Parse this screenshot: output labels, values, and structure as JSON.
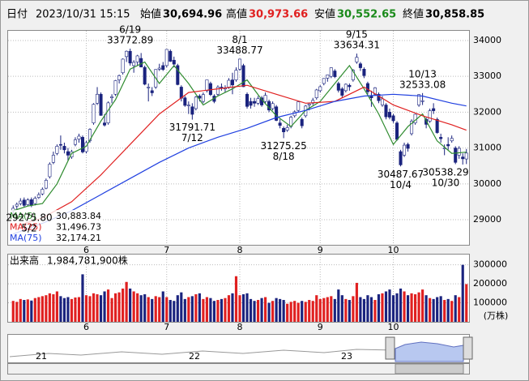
{
  "header": {
    "date_label": "日付",
    "datetime": "2023/10/31 15:15",
    "open_label": "始値",
    "open": "30,694.96",
    "high_label": "高値",
    "high": "30,973.66",
    "low_label": "安値",
    "low": "30,552.65",
    "close_label": "終値",
    "close": "30,858.85"
  },
  "chart_data": {
    "type": "candlestick",
    "categories": [
      null,
      null,
      null,
      null,
      null,
      null,
      null,
      null,
      null,
      null,
      null,
      null,
      null,
      null,
      null,
      null,
      null,
      null,
      null,
      null,
      "6",
      null,
      null,
      null,
      null,
      null,
      null,
      null,
      null,
      null,
      null,
      null,
      null,
      null,
      null,
      null,
      null,
      null,
      null,
      null,
      null,
      null,
      "7",
      null,
      null,
      null,
      null,
      null,
      null,
      null,
      null,
      null,
      null,
      null,
      null,
      null,
      null,
      null,
      null,
      null,
      null,
      null,
      "8",
      null,
      null,
      null,
      null,
      null,
      null,
      null,
      null,
      null,
      null,
      null,
      null,
      null,
      null,
      null,
      null,
      null,
      null,
      null,
      null,
      null,
      "9",
      null,
      null,
      null,
      null,
      null,
      null,
      null,
      null,
      null,
      null,
      null,
      null,
      null,
      null,
      null,
      null,
      null,
      null,
      null,
      "10",
      null,
      null,
      null,
      null,
      null,
      null,
      null,
      null,
      null,
      null,
      null,
      null,
      null,
      null,
      null,
      null,
      null,
      null,
      null,
      null
    ],
    "ohlc": [
      [
        29250,
        29400,
        29150,
        29320
      ],
      [
        29380,
        29480,
        29275.8,
        29430
      ],
      [
        29450,
        29600,
        29400,
        29520
      ],
      [
        29550,
        29620,
        29350,
        29400
      ],
      [
        29420,
        29600,
        29380,
        29550
      ],
      [
        29560,
        29620,
        29350,
        29400
      ],
      [
        29450,
        29650,
        29400,
        29600
      ],
      [
        29620,
        29760,
        29580,
        29700
      ],
      [
        29720,
        29900,
        29680,
        29850
      ],
      [
        29880,
        30150,
        29850,
        30100
      ],
      [
        30200,
        30600,
        30150,
        30550
      ],
      [
        30600,
        30900,
        30550,
        30800
      ],
      [
        30850,
        31100,
        30800,
        31050
      ],
      [
        31100,
        31350,
        30950,
        31080
      ],
      [
        31050,
        31150,
        30850,
        30950
      ],
      [
        30900,
        31000,
        30650,
        30800
      ],
      [
        30750,
        30950,
        30700,
        30900
      ],
      [
        31100,
        31300,
        31050,
        31230
      ],
      [
        31250,
        31400,
        31150,
        31330
      ],
      [
        31300,
        31350,
        30850,
        30890
      ],
      [
        30900,
        31200,
        30850,
        31150
      ],
      [
        31200,
        31550,
        31150,
        31520
      ],
      [
        31700,
        32250,
        31650,
        32220
      ],
      [
        32250,
        32700,
        32200,
        32500
      ],
      [
        32500,
        32550,
        31900,
        31910
      ],
      [
        31700,
        31950,
        31600,
        31640
      ],
      [
        31700,
        32300,
        31650,
        32260
      ],
      [
        32400,
        32500,
        32250,
        32430
      ],
      [
        32500,
        32900,
        32450,
        32880
      ],
      [
        32900,
        33050,
        32800,
        33020
      ],
      [
        33100,
        33500,
        33050,
        33480
      ],
      [
        33550,
        33720,
        33400,
        33700
      ],
      [
        33700,
        33772.89,
        33300,
        33370
      ],
      [
        33300,
        33450,
        33100,
        33390
      ],
      [
        33400,
        33600,
        33300,
        33570
      ],
      [
        33500,
        33650,
        33250,
        33260
      ],
      [
        33250,
        33300,
        32750,
        32780
      ],
      [
        32700,
        32800,
        32300,
        32700
      ],
      [
        32600,
        32700,
        32450,
        32540
      ],
      [
        32700,
        33200,
        32650,
        33190
      ],
      [
        33200,
        33350,
        33150,
        33230
      ],
      [
        33300,
        33400,
        33150,
        33190
      ],
      [
        33300,
        33760,
        33250,
        33750
      ],
      [
        33700,
        33750,
        33400,
        33420
      ],
      [
        33450,
        33550,
        33250,
        33340
      ],
      [
        33300,
        33350,
        32750,
        32770
      ],
      [
        32700,
        32750,
        32300,
        32390
      ],
      [
        32400,
        32450,
        32150,
        32190
      ],
      [
        32200,
        32300,
        31950,
        32200
      ],
      [
        32150,
        32250,
        31791.71,
        31940
      ],
      [
        32100,
        32450,
        32050,
        32420
      ],
      [
        32450,
        32500,
        32300,
        32390
      ],
      [
        32300,
        32550,
        32250,
        32490
      ],
      [
        32600,
        32900,
        32550,
        32900
      ],
      [
        32800,
        32850,
        32450,
        32490
      ],
      [
        32450,
        32500,
        32250,
        32300
      ],
      [
        32500,
        32750,
        32450,
        32700
      ],
      [
        32700,
        32800,
        32600,
        32680
      ],
      [
        32650,
        32750,
        32550,
        32670
      ],
      [
        32700,
        32950,
        32650,
        32890
      ],
      [
        32900,
        33100,
        32500,
        32760
      ],
      [
        32900,
        33250,
        32850,
        33170
      ],
      [
        33200,
        33488.77,
        33150,
        33480
      ],
      [
        33300,
        33350,
        32700,
        32710
      ],
      [
        32500,
        32550,
        32100,
        32160
      ],
      [
        32300,
        32400,
        32100,
        32190
      ],
      [
        32300,
        32400,
        32150,
        32250
      ],
      [
        32250,
        32450,
        32200,
        32380
      ],
      [
        32400,
        32450,
        32150,
        32200
      ],
      [
        32300,
        32550,
        32250,
        32470
      ],
      [
        32300,
        32350,
        32000,
        32060
      ],
      [
        32100,
        32300,
        32050,
        32240
      ],
      [
        32150,
        32200,
        31750,
        31770
      ],
      [
        31700,
        31800,
        31550,
        31630
      ],
      [
        31550,
        31600,
        31275.25,
        31450
      ],
      [
        31500,
        31650,
        31450,
        31570
      ],
      [
        31600,
        31900,
        31550,
        31860
      ],
      [
        31900,
        32050,
        31850,
        32010
      ],
      [
        32050,
        32300,
        32000,
        32290
      ],
      [
        31800,
        31850,
        31550,
        31620
      ],
      [
        31900,
        32200,
        31850,
        32170
      ],
      [
        32200,
        32250,
        32050,
        32230
      ],
      [
        32250,
        32400,
        32200,
        32330
      ],
      [
        32400,
        32650,
        32350,
        32620
      ],
      [
        32600,
        32750,
        32550,
        32710
      ],
      [
        32800,
        32950,
        32750,
        32940
      ],
      [
        32950,
        33050,
        32850,
        33040
      ],
      [
        33000,
        33250,
        32950,
        33240
      ],
      [
        33150,
        33200,
        32950,
        32990
      ],
      [
        32800,
        32850,
        32550,
        32610
      ],
      [
        32650,
        32700,
        32400,
        32470
      ],
      [
        32600,
        32800,
        32550,
        32780
      ],
      [
        32750,
        32800,
        32600,
        32710
      ],
      [
        32900,
        33200,
        32850,
        33170
      ],
      [
        33400,
        33634.31,
        33350,
        33530
      ],
      [
        33350,
        33400,
        33150,
        33240
      ],
      [
        33200,
        33250,
        32950,
        33020
      ],
      [
        32800,
        32850,
        32500,
        32570
      ],
      [
        32450,
        32600,
        32150,
        32400
      ],
      [
        32500,
        32700,
        32450,
        32680
      ],
      [
        32500,
        32550,
        32250,
        32320
      ],
      [
        32200,
        32450,
        32150,
        32370
      ],
      [
        32200,
        32250,
        31800,
        31870
      ],
      [
        32000,
        32100,
        31800,
        31860
      ],
      [
        31900,
        31950,
        31700,
        31760
      ],
      [
        31700,
        31750,
        31200,
        31240
      ],
      [
        30900,
        30950,
        30487.67,
        30530
      ],
      [
        30800,
        31150,
        30750,
        31080
      ],
      [
        31100,
        31150,
        30900,
        30990
      ],
      [
        31400,
        31800,
        31350,
        31750
      ],
      [
        31700,
        31950,
        31650,
        31940
      ],
      [
        32200,
        32500,
        32150,
        32490
      ],
      [
        32300,
        32533.08,
        32200,
        32320
      ],
      [
        31800,
        31850,
        31550,
        31660
      ],
      [
        31750,
        32100,
        31700,
        32040
      ],
      [
        32100,
        32250,
        31950,
        32040
      ],
      [
        31800,
        31850,
        31400,
        31430
      ],
      [
        31300,
        31400,
        31150,
        31260
      ],
      [
        31000,
        31100,
        30800,
        31000
      ],
      [
        31100,
        31300,
        30950,
        31060
      ],
      [
        31200,
        31350,
        31150,
        31270
      ],
      [
        31000,
        31050,
        30550,
        30600
      ],
      [
        30800,
        31050,
        30700,
        30990
      ],
      [
        30750,
        30850,
        30538.29,
        30700
      ],
      [
        30694.96,
        30973.66,
        30552.65,
        30858.85
      ]
    ],
    "up_color": "#ffffff",
    "down_color": "#1a237e",
    "edge_color": "#1a237e",
    "ylim": [
      28300,
      34270
    ],
    "yticks": [
      29000,
      30000,
      31000,
      32000,
      33000,
      34000
    ],
    "grid": true,
    "series": [
      {
        "name": "MA(5)",
        "last_label": "30,883.84",
        "color": "#2e8b2e",
        "x": [
          0,
          4,
          8,
          12,
          16,
          20,
          24,
          28,
          32,
          36,
          40,
          44,
          48,
          52,
          56,
          60,
          64,
          68,
          72,
          76,
          80,
          84,
          88,
          92,
          96,
          100,
          104,
          108,
          112,
          116,
          120,
          124
        ],
        "values": [
          29250,
          29380,
          29450,
          30000,
          30850,
          31050,
          31750,
          32350,
          33200,
          33400,
          32800,
          33300,
          32800,
          32200,
          32450,
          32650,
          32900,
          32350,
          31900,
          31600,
          32050,
          32300,
          32800,
          33300,
          32650,
          31950,
          31100,
          31600,
          31950,
          31200,
          30850,
          30883.84
        ]
      },
      {
        "name": "MA(25)",
        "last_label": "31,496.73",
        "color": "#e02020",
        "x": [
          0,
          8,
          16,
          24,
          32,
          40,
          48,
          56,
          64,
          72,
          80,
          88,
          96,
          104,
          112,
          120,
          124
        ],
        "values": [
          28800,
          29050,
          29500,
          30250,
          31100,
          31950,
          32550,
          32650,
          32750,
          32500,
          32250,
          32300,
          32700,
          32200,
          31900,
          31650,
          31496.73
        ]
      },
      {
        "name": "MA(75)",
        "last_label": "32,174.21",
        "color": "#2040e0",
        "x": [
          0,
          8,
          16,
          24,
          32,
          40,
          48,
          56,
          64,
          72,
          80,
          88,
          96,
          104,
          112,
          120,
          124
        ],
        "values": [
          28600,
          28900,
          29250,
          29700,
          30150,
          30600,
          31000,
          31300,
          31550,
          31850,
          32050,
          32300,
          32450,
          32500,
          32450,
          32250,
          32174.21
        ]
      }
    ],
    "annotations": [
      {
        "date": "5/2",
        "value": 29275.8,
        "label": "29275.80"
      },
      {
        "date": "6/19",
        "value": 33772.89,
        "label": "33772.89"
      },
      {
        "date": "7/12",
        "value": 31791.71,
        "label": "31791.71"
      },
      {
        "date": "8/1",
        "value": 33488.77,
        "label": "33488.77"
      },
      {
        "date": "8/18",
        "value": 31275.25,
        "label": "31275.25"
      },
      {
        "date": "9/15",
        "value": 33634.31,
        "label": "33634.31"
      },
      {
        "date": "10/4",
        "value": 30487.67,
        "label": "30487.67"
      },
      {
        "date": "10/13",
        "value": 32533.08,
        "label": "32533.08"
      },
      {
        "date": "10/30",
        "value": 30538.29,
        "label": "30538.29"
      }
    ],
    "volume": {
      "title": "出来高",
      "total_label": "1,984,781,900株",
      "unit": "(万株)",
      "up_color": "#e02020",
      "down_color": "#1a237e",
      "ylim": [
        0,
        354000
      ],
      "yticks": [
        100000,
        200000,
        300000
      ],
      "values": [
        110000,
        105000,
        120000,
        115000,
        118000,
        112000,
        125000,
        130000,
        135000,
        140000,
        150000,
        145000,
        160000,
        135000,
        125000,
        130000,
        120000,
        128000,
        130000,
        250000,
        140000,
        135000,
        150000,
        145000,
        140000,
        160000,
        170000,
        125000,
        150000,
        155000,
        175000,
        210000,
        175000,
        160000,
        150000,
        140000,
        145000,
        130000,
        120000,
        135000,
        130000,
        160000,
        130000,
        115000,
        110000,
        140000,
        155000,
        120000,
        130000,
        135000,
        145000,
        150000,
        120000,
        130000,
        125000,
        110000,
        115000,
        120000,
        125000,
        140000,
        150000,
        240000,
        140000,
        145000,
        150000,
        120000,
        110000,
        115000,
        125000,
        130000,
        100000,
        110000,
        125000,
        120000,
        115000,
        95000,
        105000,
        110000,
        100000,
        110000,
        105000,
        115000,
        110000,
        140000,
        120000,
        125000,
        130000,
        135000,
        120000,
        170000,
        140000,
        120000,
        115000,
        135000,
        205000,
        130000,
        120000,
        140000,
        130000,
        115000,
        145000,
        150000,
        160000,
        170000,
        140000,
        150000,
        175000,
        160000,
        140000,
        150000,
        145000,
        155000,
        170000,
        140000,
        125000,
        120000,
        130000,
        135000,
        115000,
        120000,
        110000,
        140000,
        130000,
        300000,
        198478
      ]
    }
  },
  "navigator": {
    "labels": [
      "21",
      "22",
      "23"
    ]
  }
}
